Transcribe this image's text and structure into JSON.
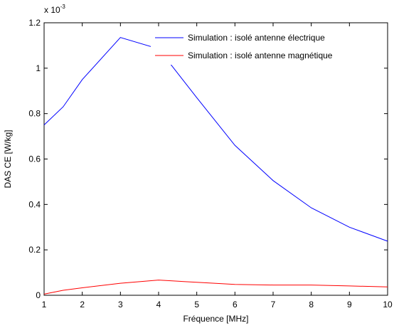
{
  "chart_data": {
    "type": "line",
    "title": "",
    "xlabel": "Fréquence [MHz]",
    "ylabel": "DAS CE [W/kg]",
    "y_multiplier": {
      "base": "x 10",
      "exponent": "-3"
    },
    "xlim": [
      1,
      10
    ],
    "ylim": [
      0,
      1.2
    ],
    "x_ticks": [
      1,
      2,
      3,
      4,
      5,
      6,
      7,
      8,
      9,
      10
    ],
    "x_tick_labels": [
      "1",
      "2",
      "3",
      "4",
      "5",
      "6",
      "7",
      "8",
      "9",
      "10"
    ],
    "y_ticks": [
      0,
      0.2,
      0.4,
      0.6,
      0.8,
      1,
      1.2
    ],
    "y_tick_labels": [
      "0",
      "0.2",
      "0.4",
      "0.6",
      "0.8",
      "1",
      "1.2"
    ],
    "grid": false,
    "legend_position": "top-right",
    "series": [
      {
        "name": "Simulation : isolé antenne électrique",
        "color": "#0000ff",
        "x": [
          1,
          1.5,
          2,
          3,
          4,
          5,
          6,
          7,
          8,
          9,
          10
        ],
        "y": [
          0.75,
          0.83,
          0.95,
          1.135,
          1.085,
          0.87,
          0.66,
          0.505,
          0.385,
          0.3,
          0.238
        ]
      },
      {
        "name": "Simulation : isolé antenne magnétique",
        "color": "#ff0000",
        "x": [
          1,
          1.5,
          2,
          3,
          4,
          5,
          6,
          7,
          8,
          9,
          10
        ],
        "y": [
          0.005,
          0.022,
          0.033,
          0.053,
          0.067,
          0.057,
          0.048,
          0.045,
          0.045,
          0.041,
          0.037
        ]
      }
    ]
  }
}
